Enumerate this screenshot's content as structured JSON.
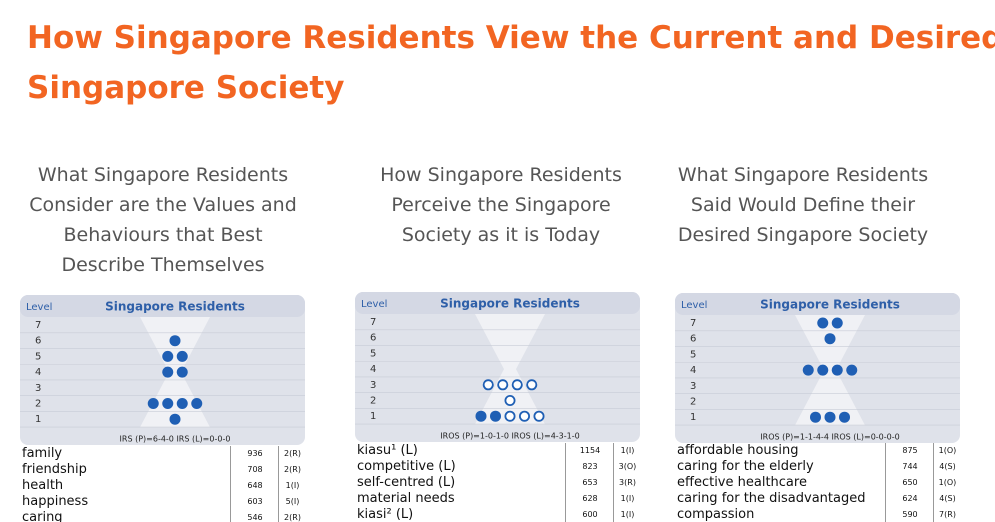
{
  "title_lines": [
    "How Singapore Residents View the Current and Desired",
    "Singapore Society"
  ],
  "panels": [
    {
      "heading_lines": [
        "What Singapore Residents",
        "Consider are the Values and",
        "Behaviours that Best",
        "Describe Themselves"
      ],
      "level_header": "Level",
      "group_header": "Singapore Residents",
      "levels": [
        7,
        6,
        5,
        4,
        3,
        2,
        1
      ],
      "dots": [
        {
          "filled": 0,
          "hollow": 0
        },
        {
          "filled": 1,
          "hollow": 0
        },
        {
          "filled": 2,
          "hollow": 0
        },
        {
          "filled": 2,
          "hollow": 0
        },
        {
          "filled": 0,
          "hollow": 0
        },
        {
          "filled": 4,
          "hollow": 0
        },
        {
          "filled": 1,
          "hollow": 0
        }
      ],
      "footer": "IRS (P)=6-4-0  IRS (L)=0-0-0",
      "rows": [
        [
          "family",
          936,
          "2(R)"
        ],
        [
          "friendship",
          708,
          "2(R)"
        ],
        [
          "health",
          648,
          "1(I)"
        ],
        [
          "happiness",
          603,
          "5(I)"
        ],
        [
          "caring",
          546,
          "2(R)"
        ]
      ]
    },
    {
      "heading_lines": [
        "How Singapore Residents",
        "Perceive the Singapore",
        "Society as it is Today"
      ],
      "level_header": "Level",
      "group_header": "Singapore Residents",
      "levels": [
        7,
        6,
        5,
        4,
        3,
        2,
        1
      ],
      "dots": [
        {
          "filled": 0,
          "hollow": 0
        },
        {
          "filled": 0,
          "hollow": 0
        },
        {
          "filled": 0,
          "hollow": 0
        },
        {
          "filled": 0,
          "hollow": 0
        },
        {
          "filled": 0,
          "hollow": 4
        },
        {
          "filled": 0,
          "hollow": 1
        },
        {
          "filled": 2,
          "hollow": 3
        }
      ],
      "footer": "IROS (P)=1-0-1-0  IROS (L)=4-3-1-0",
      "rows": [
        [
          "kiasu¹ (L)",
          1154,
          "1(I)"
        ],
        [
          "competitive (L)",
          823,
          "3(O)"
        ],
        [
          "self-centred (L)",
          653,
          "3(R)"
        ],
        [
          "material needs",
          628,
          "1(I)"
        ],
        [
          "kiasi² (L)",
          600,
          "1(I)"
        ]
      ]
    },
    {
      "heading_lines": [
        "What Singapore Residents",
        "Said Would Define their",
        "Desired Singapore Society"
      ],
      "level_header": "Level",
      "group_header": "Singapore Residents",
      "levels": [
        7,
        6,
        5,
        4,
        3,
        2,
        1
      ],
      "dots": [
        {
          "filled": 2,
          "hollow": 0
        },
        {
          "filled": 1,
          "hollow": 0
        },
        {
          "filled": 0,
          "hollow": 0
        },
        {
          "filled": 4,
          "hollow": 0
        },
        {
          "filled": 0,
          "hollow": 0
        },
        {
          "filled": 0,
          "hollow": 0
        },
        {
          "filled": 3,
          "hollow": 0
        }
      ],
      "footer": "IROS (P)=1-1-4-4  IROS (L)=0-0-0-0",
      "rows": [
        [
          "affordable housing",
          875,
          "1(O)"
        ],
        [
          "caring for the elderly",
          744,
          "4(S)"
        ],
        [
          "effective healthcare",
          650,
          "1(O)"
        ],
        [
          "caring for the disadvantaged",
          624,
          "4(S)"
        ],
        [
          "compassion",
          590,
          "7(R)"
        ]
      ]
    }
  ]
}
